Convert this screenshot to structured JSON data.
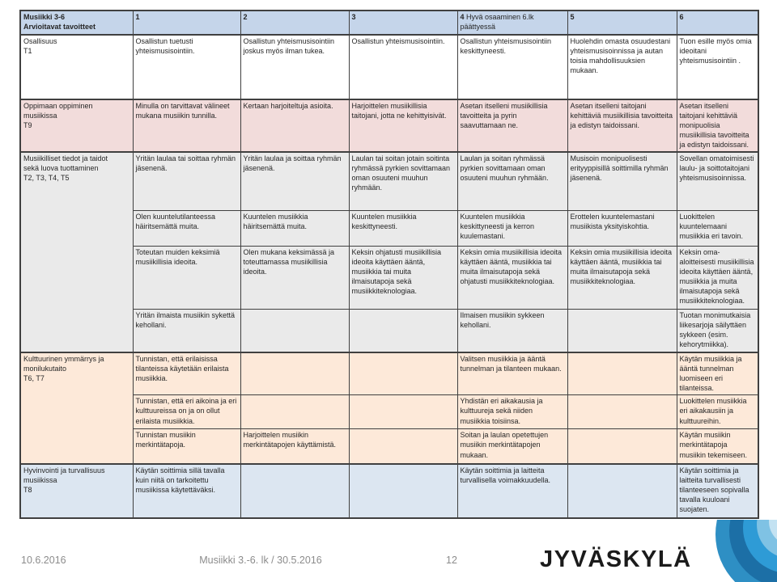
{
  "table": {
    "header": [
      {
        "label": "Musiikki 3-6\nArvioitavat tavoitteet"
      },
      {
        "num": "1"
      },
      {
        "num": "2"
      },
      {
        "num": "3"
      },
      {
        "num": "4",
        "label": "Hyvä osaaminen 6.lk päättyessä"
      },
      {
        "num": "5"
      },
      {
        "num": "6"
      }
    ],
    "sections": [
      {
        "label": "Osallisuus\nT1",
        "bg": "#FFFFFF",
        "rows": [
          [
            "Osallistun tuetusti yhteismusisointiin.",
            "Osallistun yhteismusisointiin joskus myös ilman tukea.",
            "Osallistun yhteismusisointiin.",
            "Osallistun yhteismusisointiin keskittyneesti.",
            "Huolehdin omasta osuudestani yhteismusisoinnissa ja autan toisia mahdollisuuksien mukaan.",
            "Tuon esille myös omia ideoitani yhteismusisointiin ."
          ]
        ]
      },
      {
        "label": "Oppimaan oppiminen\nmusiikissa\nT9",
        "bg": "#F2DCDB",
        "rows": [
          [
            "Minulla on tarvittavat välineet mukana musiikin tunnilla.",
            "Kertaan harjoiteltuja asioita.",
            "Harjoittelen musiikillisia taitojani, jotta ne kehittyisivät.",
            "Asetan itselleni musiikillisia tavoitteita ja pyrin saavuttamaan ne.",
            "Asetan itselleni taitojani kehittäviä musiikillisia tavoitteita ja edistyn taidoissani.",
            "Asetan itselleni taitojani kehittäviä monipuolisia musiikillisia tavoitteita ja edistyn taidoissani."
          ]
        ]
      },
      {
        "label": "Musiikilliset tiedot ja taidot\nsekä luova tuottaminen\nT2, T3, T4, T5",
        "bg": "#EAEAEA",
        "rows": [
          [
            "Yritän laulaa tai soittaa ryhmän jäsenenä.",
            "Yritän laulaa ja soittaa ryhmän jäsenenä.",
            "Laulan tai soitan jotain soitinta ryhmässä pyrkien sovittamaan oman osuuteni muuhun ryhmään.",
            "Laulan ja soitan ryhmässä pyrkien sovittamaan oman osuuteni muuhun ryhmään.",
            "Musisoin monipuolisesti erityyppisillä soittimilla ryhmän jäsenenä.",
            "Sovellan omatoimisesti laulu- ja soittotaitojani yhteismusisoinnissa."
          ],
          [
            "Olen kuuntelutilanteessa häiritsemättä muita.",
            "Kuuntelen musiikkia häiritsemättä muita.",
            "Kuuntelen musiikkia keskittyneesti.",
            "Kuuntelen musiikkia keskittyneesti ja kerron kuulemastani.",
            "Erottelen kuuntelemastani musiikista yksityiskohtia.",
            "Luokittelen kuuntelemaani musiikkia eri tavoin."
          ],
          [
            "Toteutan muiden keksimiä musiikillisia ideoita.",
            "Olen mukana keksimässä ja toteuttamassa musiikillisia ideoita.",
            "Keksin ohjatusti musiikillisia ideoita käyttäen ääntä, musiikkia tai muita ilmaisutapoja sekä musiikkiteknologiaa.",
            "Keksin omia musiikillisia ideoita käyttäen ääntä, musiikkia tai muita ilmaisutapoja sekä ohjatusti musiikkiteknologiaa.",
            "Keksin omia musiikillisia ideoita käyttäen ääntä, musiikkia tai muita ilmaisutapoja sekä musiikkiteknologiaa.",
            "Keksin oma-aloitteisesti musiikillisia ideoita käyttäen ääntä, musiikkia ja muita ilmaisutapoja sekä musiikkiteknologiaa."
          ],
          [
            "Yritän ilmaista musiikin sykettä kehollani.",
            "",
            "",
            "Ilmaisen musiikin sykkeen kehollani.",
            "",
            "Tuotan monimutkaisia liikesarjoja säilyttäen sykkeen (esim. kehorytmiikka)."
          ]
        ]
      },
      {
        "label": "Kulttuurinen ymmärrys ja\nmonilukutaito\nT6, T7",
        "bg": "#FDE9D9",
        "rows": [
          [
            "Tunnistan, että erilaisissa tilanteissa käytetään erilaista musiikkia.",
            "",
            "",
            "Valitsen musiikkia ja ääntä tunnelman ja tilanteen mukaan.",
            "",
            "Käytän musiikkia ja ääntä tunnelman luomiseen eri tilanteissa."
          ],
          [
            "Tunnistan, että eri aikoina ja eri kulttuureissa on ja on ollut erilaista musiikkia.",
            "",
            "",
            "Yhdistän eri aikakausia ja kulttuureja sekä niiden musiikkia toisiinsa.",
            "",
            "Luokittelen musiikkia eri aikakausiin ja kulttuureihin."
          ],
          [
            "Tunnistan musiikin merkintätapoja.",
            "Harjoittelen musiikin merkintätapojen käyttämistä.",
            "",
            "Soitan ja laulan opetettujen musiikin merkintätapojen mukaan.",
            "",
            "Käytän musiikin merkintätapoja musiikin tekemiseen."
          ]
        ]
      },
      {
        "label": "Hyvinvointi ja turvallisuus\nmusiikissa\nT8",
        "bg": "#DCE6F1",
        "rows": [
          [
            "Käytän soittimia sillä tavalla kuin niitä on tarkoitettu musiikissa käytettäväksi.",
            "",
            "",
            "Käytän soittimia ja laitteita turvallisella voimakkuudella.",
            "",
            "Käytän soittimia ja laitteita turvallisesti tilanteeseen sopivalla tavalla kuuloani suojaten."
          ]
        ]
      }
    ]
  },
  "footer": {
    "date": "10.6.2016",
    "title": "Musiikki 3.-6. lk / 30.5.2016",
    "page": "12"
  },
  "logo": {
    "text": "JYVÄSKYLÄ"
  },
  "colors": {
    "header_bg": "#C5D5EA",
    "border": "#404040",
    "footer_text": "#8C8C8C",
    "logo_text": "#1B1B1B",
    "swirl": [
      "#2E8FC4",
      "#1C6FA6",
      "#2E9BD6",
      "#7FC2E4",
      "#C3E2F2",
      "#8FCBE8"
    ]
  }
}
